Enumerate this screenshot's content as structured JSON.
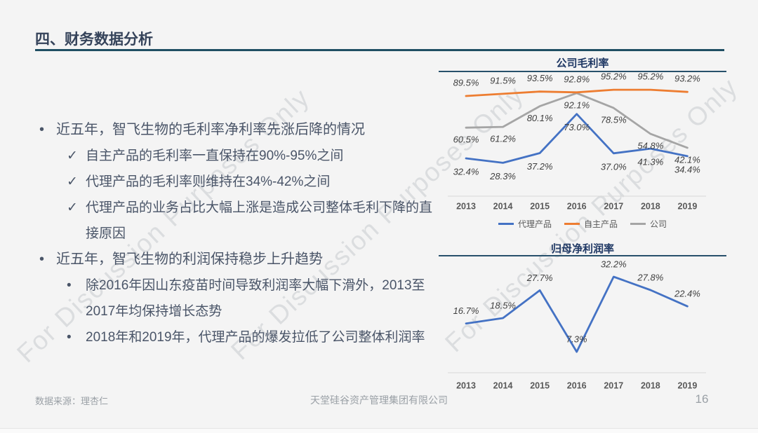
{
  "slide": {
    "title": "四、财务数据分析",
    "page_number": "16",
    "watermark": "For Discussion Purposes Only",
    "footer": {
      "source": "数据来源：理杏仁",
      "company": "天堂硅谷资产管理集团有限公司"
    },
    "colors": {
      "accent_blue": "#4472C4",
      "accent_orange": "#ED7D31",
      "accent_gray": "#A5A5A5",
      "title_navy": "#1F3864",
      "underline_teal": "#1F4E63"
    }
  },
  "bullets": [
    {
      "marker": "•",
      "level": 1,
      "text": "近五年，智飞生物的毛利率净利率先涨后降的情况"
    },
    {
      "marker": "✓",
      "level": 2,
      "text": "自主产品的毛利率一直保持在90%-95%之间"
    },
    {
      "marker": "✓",
      "level": 2,
      "text": "代理产品的毛利率则维持在34%-42%之间"
    },
    {
      "marker": "✓",
      "level": 2,
      "text": "代理产品的业务占比大幅上涨是造成公司整体毛利下降的直接原因"
    },
    {
      "marker": "•",
      "level": 1,
      "text": "近五年，智飞生物的利润保持稳步上升趋势"
    },
    {
      "marker": "•",
      "level": 2,
      "text": "除2016年因山东疫苗时间导致利润率大幅下滑外，2013至2017年均保持增长态势"
    },
    {
      "marker": "•",
      "level": 2,
      "text": "2018年和2019年，代理产品的爆发拉低了公司整体利润率"
    }
  ],
  "chart_data": [
    {
      "type": "line",
      "title": "公司毛利率",
      "categories": [
        "2013",
        "2014",
        "2015",
        "2016",
        "2017",
        "2018",
        "2019"
      ],
      "series": [
        {
          "name": "代理产品",
          "color": "#4472C4",
          "values": [
            32.4,
            28.3,
            37.2,
            73.0,
            37.0,
            41.3,
            34.4
          ]
        },
        {
          "name": "自主产品",
          "color": "#ED7D31",
          "values": [
            89.5,
            91.5,
            93.5,
            92.8,
            95.2,
            95.2,
            93.2
          ]
        },
        {
          "name": "公司",
          "color": "#A5A5A5",
          "values": [
            60.5,
            61.2,
            80.1,
            92.1,
            78.5,
            54.8,
            42.1
          ]
        }
      ],
      "value_suffix": "%",
      "ylim": [
        0,
        110
      ],
      "grid": false,
      "legend_position": "bottom",
      "data_labels": true
    },
    {
      "type": "line",
      "title": "归母净利润率",
      "categories": [
        "2013",
        "2014",
        "2015",
        "2016",
        "2017",
        "2018",
        "2019"
      ],
      "series": [
        {
          "name": "归母净利润率",
          "color": "#4472C4",
          "values": [
            16.7,
            18.5,
            27.7,
            7.3,
            32.2,
            27.8,
            22.4
          ]
        }
      ],
      "value_suffix": "%",
      "ylim": [
        0,
        40
      ],
      "grid": false,
      "legend_position": "none",
      "data_labels": true
    }
  ]
}
